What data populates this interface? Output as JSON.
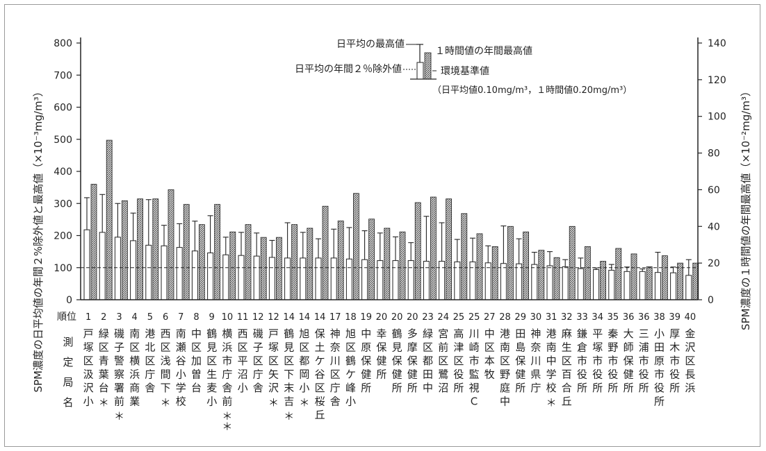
{
  "chart_data": {
    "type": "bar",
    "axes": {
      "left": {
        "label": "SPM濃度の日平均値の年間２%除外値と最高値（×10⁻³mg/m³）",
        "range": [
          0,
          800
        ],
        "ticks": [
          "0",
          "100",
          "200",
          "300",
          "400",
          "500",
          "600",
          "700",
          "800"
        ]
      },
      "right": {
        "label": "SPM濃度の１時間値の年間最高値（×10⁻²mg/m³）",
        "range": [
          0,
          140
        ],
        "ticks": [
          "0",
          "20",
          "40",
          "60",
          "80",
          "100",
          "120",
          "140"
        ]
      },
      "rank_header": "順位",
      "station_header": "測定局名"
    },
    "reference_line": {
      "left_value": 100,
      "right_value": 20,
      "style": "dashed"
    },
    "legend": {
      "max_label": "日平均の最高値",
      "hourly_label": "１時間値の年間最高値",
      "p98_label": "日平均の年間２％除外値",
      "standard_label": "環境基準値",
      "standard_note": "（日平均値0.10mg/m³，１時間値0.20mg/m³）",
      "placement": "top-right"
    },
    "categories": [
      {
        "rank": "1",
        "name": "戸塚区汲沢小",
        "mark": ""
      },
      {
        "rank": "2",
        "name": "緑区青葉台",
        "mark": "＊"
      },
      {
        "rank": "3",
        "name": "磯子警察署前",
        "mark": "＊"
      },
      {
        "rank": "4",
        "name": "南区横浜商業",
        "mark": ""
      },
      {
        "rank": "5",
        "name": "港北区庁舎",
        "mark": ""
      },
      {
        "rank": "6",
        "name": "西区浅間下",
        "mark": "＊"
      },
      {
        "rank": "7",
        "name": "南瀬谷小学校",
        "mark": ""
      },
      {
        "rank": "8",
        "name": "中区加曽台",
        "mark": ""
      },
      {
        "rank": "9",
        "name": "鶴見区生麦小",
        "mark": ""
      },
      {
        "rank": "10",
        "name": "横浜市庁舎前",
        "mark": "＊＊"
      },
      {
        "rank": "11",
        "name": "西区平沼小",
        "mark": ""
      },
      {
        "rank": "12",
        "name": "磯子区庁舎",
        "mark": ""
      },
      {
        "rank": "12",
        "name": "戸塚区矢沢",
        "mark": "＊"
      },
      {
        "rank": "14",
        "name": "鶴見区下末吉",
        "mark": "＊"
      },
      {
        "rank": "14",
        "name": "旭区都岡小",
        "mark": "＊"
      },
      {
        "rank": "14",
        "name": "保土ケ谷区桜丘",
        "mark": ""
      },
      {
        "rank": "17",
        "name": "神奈川区庁舎",
        "mark": ""
      },
      {
        "rank": "18",
        "name": "旭区鶴ケ峰小",
        "mark": ""
      },
      {
        "rank": "19",
        "name": "中原保健所",
        "mark": ""
      },
      {
        "rank": "20",
        "name": "幸保健所",
        "mark": ""
      },
      {
        "rank": "20",
        "name": "鶴見保健所",
        "mark": ""
      },
      {
        "rank": "20",
        "name": "多摩保健所",
        "mark": ""
      },
      {
        "rank": "23",
        "name": "緑区都田中",
        "mark": ""
      },
      {
        "rank": "24",
        "name": "宮前区鷺沼",
        "mark": ""
      },
      {
        "rank": "25",
        "name": "高津区役所",
        "mark": ""
      },
      {
        "rank": "25",
        "name": "川崎市監視Ｃ",
        "mark": ""
      },
      {
        "rank": "27",
        "name": "中区本牧",
        "mark": ""
      },
      {
        "rank": "28",
        "name": "港南区野庭中",
        "mark": ""
      },
      {
        "rank": "29",
        "name": "田島保健所",
        "mark": ""
      },
      {
        "rank": "30",
        "name": "神奈川県庁",
        "mark": ""
      },
      {
        "rank": "31",
        "name": "港南中学校",
        "mark": "＊"
      },
      {
        "rank": "32",
        "name": "麻生区百合丘",
        "mark": ""
      },
      {
        "rank": "33",
        "name": "鎌倉市役所",
        "mark": ""
      },
      {
        "rank": "34",
        "name": "平塚市役所",
        "mark": ""
      },
      {
        "rank": "35",
        "name": "秦野市役所",
        "mark": ""
      },
      {
        "rank": "36",
        "name": "大師保健所",
        "mark": ""
      },
      {
        "rank": "36",
        "name": "三浦市役所",
        "mark": ""
      },
      {
        "rank": "38",
        "name": "小田原市役所",
        "mark": ""
      },
      {
        "rank": "39",
        "name": "厚木市役所",
        "mark": ""
      },
      {
        "rank": "40",
        "name": "金沢区長浜",
        "mark": ""
      }
    ],
    "series": [
      {
        "name": "日平均の年間２％除外値",
        "axis": "left",
        "style": "open",
        "values": [
          218,
          210,
          195,
          184,
          170,
          168,
          163,
          152,
          146,
          140,
          138,
          136,
          132,
          130,
          130,
          130,
          130,
          127,
          125,
          122,
          122,
          122,
          120,
          120,
          118,
          118,
          115,
          113,
          112,
          110,
          106,
          103,
          97,
          94,
          92,
          88,
          88,
          85,
          84,
          76
        ]
      },
      {
        "name": "日平均の最高値",
        "axis": "left",
        "style": "whisker",
        "values": [
          318,
          328,
          300,
          270,
          312,
          232,
          237,
          245,
          262,
          195,
          210,
          208,
          185,
          240,
          210,
          190,
          220,
          225,
          215,
          208,
          196,
          178,
          260,
          240,
          188,
          192,
          168,
          230,
          190,
          148,
          150,
          125,
          130,
          99,
          110,
          102,
          96,
          148,
          102,
          125
        ]
      },
      {
        "name": "１時間値の年間最高値",
        "axis": "right",
        "style": "hatched",
        "values": [
          63,
          87,
          54,
          55,
          55,
          60,
          52,
          41,
          52,
          37,
          41,
          34,
          34,
          41,
          39,
          51,
          43,
          58,
          44,
          39,
          37,
          53,
          56,
          55,
          47,
          36,
          29,
          40,
          37,
          27,
          23,
          40,
          29,
          21,
          28,
          25,
          18,
          24,
          20,
          20
        ]
      }
    ]
  }
}
